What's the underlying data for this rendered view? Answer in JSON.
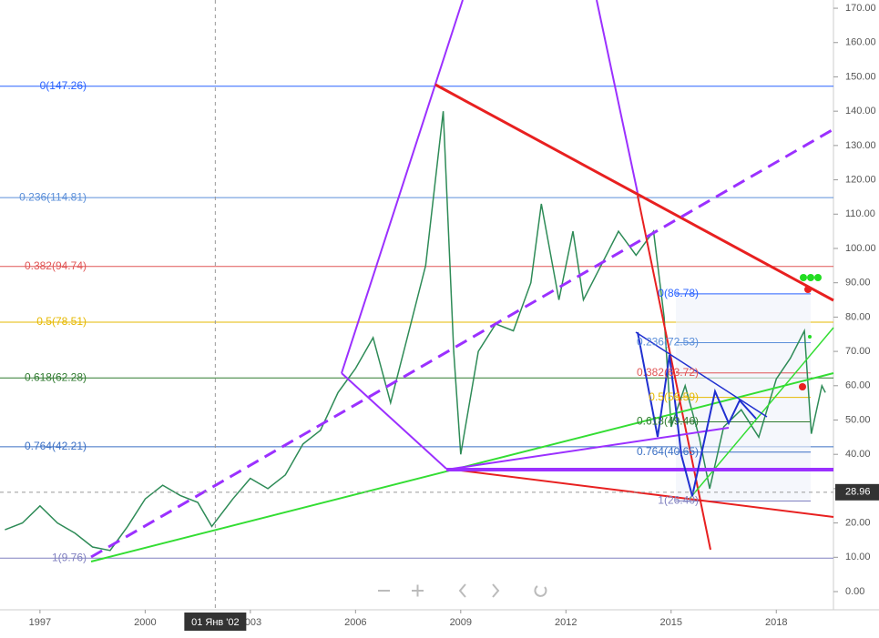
{
  "chart_data": {
    "type": "line",
    "series": [
      {
        "name": "price",
        "color": "#2e8b57",
        "x": [
          1996.0,
          1996.5,
          1997.0,
          1997.5,
          1998.0,
          1998.5,
          1999.0,
          1999.5,
          2000.0,
          2000.5,
          2001.0,
          2001.5,
          2001.9,
          2002.5,
          2003.0,
          2003.5,
          2004.0,
          2004.5,
          2005.0,
          2005.5,
          2006.0,
          2006.5,
          2007.0,
          2007.5,
          2008.0,
          2008.5,
          2008.8,
          2009.0,
          2009.5,
          2010.0,
          2010.5,
          2011.0,
          2011.3,
          2011.8,
          2012.2,
          2012.5,
          2013.0,
          2013.5,
          2014.0,
          2014.5,
          2014.8,
          2015.0,
          2015.4,
          2015.8,
          2016.1,
          2016.5,
          2017.0,
          2017.5,
          2018.0,
          2018.4,
          2018.8,
          2019.0,
          2019.3,
          2019.4
        ],
        "values": [
          18,
          20,
          25,
          20,
          17,
          13,
          12,
          19,
          27,
          31,
          28,
          26,
          19,
          27,
          33,
          30,
          34,
          43,
          47,
          58,
          65,
          74,
          55,
          75,
          95,
          140,
          70,
          40,
          70,
          78,
          76,
          90,
          113,
          85,
          105,
          85,
          95,
          105,
          98,
          105,
          80,
          48,
          60,
          45,
          30,
          48,
          53,
          45,
          62,
          68,
          76,
          46,
          60,
          58
        ]
      }
    ],
    "xlim": [
      1995.86,
      2019.63
    ],
    "ylim": [
      -5.3,
      172.4
    ],
    "xticks": [
      1997,
      2000,
      2003,
      2006,
      2009,
      2012,
      2015,
      2018
    ],
    "yticks": [
      {
        "value": 0,
        "label": "0.00"
      },
      {
        "value": 10,
        "label": "10.00"
      },
      {
        "value": 20,
        "label": "20.00"
      },
      {
        "value": 30,
        "label": "30.00"
      },
      {
        "value": 40,
        "label": "40.00"
      },
      {
        "value": 50,
        "label": "50.00"
      },
      {
        "value": 60,
        "label": "60.00"
      },
      {
        "value": 70,
        "label": "70.00"
      },
      {
        "value": 80,
        "label": "80.00"
      },
      {
        "value": 90,
        "label": "90.00"
      },
      {
        "value": 100,
        "label": "100.00"
      },
      {
        "value": 110,
        "label": "110.00"
      },
      {
        "value": 120,
        "label": "120.00"
      },
      {
        "value": 130,
        "label": "130.00"
      },
      {
        "value": 140,
        "label": "140.00"
      },
      {
        "value": 150,
        "label": "150.00"
      },
      {
        "value": 160,
        "label": "160.00"
      },
      {
        "value": 170,
        "label": "170.00"
      }
    ],
    "fib_left": [
      {
        "label": "0(147.26)",
        "value": 147.26,
        "color": "#2962ff"
      },
      {
        "label": "0.236(114.81)",
        "value": 114.81,
        "color": "#5b8fd9"
      },
      {
        "label": "0.382(94.74)",
        "value": 94.74,
        "color": "#e05555"
      },
      {
        "label": "0.5(78.51)",
        "value": 78.51,
        "color": "#e6b800"
      },
      {
        "label": "0.618(62.28)",
        "value": 62.28,
        "color": "#2f7a2f"
      },
      {
        "label": "0.764(42.21)",
        "value": 42.21,
        "color": "#3a6fc4"
      },
      {
        "label": "1(9.76)",
        "value": 9.76,
        "color": "#8080c0"
      }
    ],
    "fib_right": [
      {
        "label": "0(86.78)",
        "value": 86.78,
        "color": "#2962ff"
      },
      {
        "label": "0.236(72.53)",
        "value": 72.53,
        "color": "#5b8fd9"
      },
      {
        "label": "0.382(63.72)",
        "value": 63.72,
        "color": "#e05555"
      },
      {
        "label": "0.5(56.59)",
        "value": 56.59,
        "color": "#e6b800"
      },
      {
        "label": "0.618(49.46)",
        "value": 49.46,
        "color": "#2f7a2f"
      },
      {
        "label": "0.764(40.65)",
        "value": 40.65,
        "color": "#3a6fc4"
      },
      {
        "label": "1(26.40)",
        "value": 26.4,
        "color": "#8080c0"
      }
    ],
    "crosshair": {
      "x": 2002.0,
      "x_label": "01 Янв '02",
      "y": 28.96
    }
  }
}
